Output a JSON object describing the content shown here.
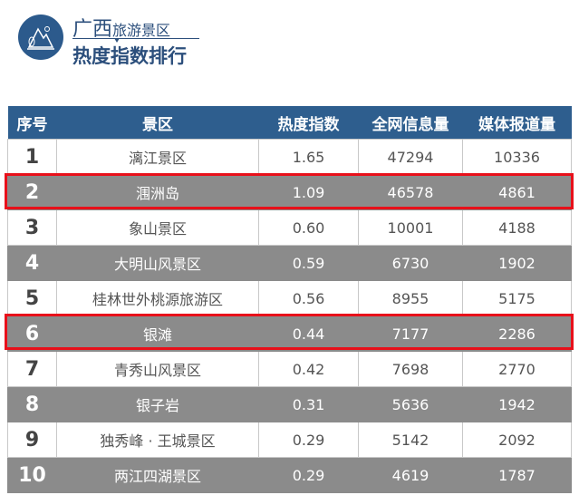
{
  "header": {
    "region": "广西",
    "subtitle": "旅游景区",
    "title": "热度指数排行"
  },
  "table": {
    "columns": [
      "序号",
      "景区",
      "热度指数",
      "全网信息量",
      "媒体报道量"
    ],
    "rows": [
      [
        "1",
        "漓江景区",
        "1.65",
        "47294",
        "10336"
      ],
      [
        "2",
        "涠洲岛",
        "1.09",
        "46578",
        "4861"
      ],
      [
        "3",
        "象山景区",
        "0.60",
        "10001",
        "4188"
      ],
      [
        "4",
        "大明山风景区",
        "0.59",
        "6730",
        "1902"
      ],
      [
        "5",
        "桂林世外桃源旅游区",
        "0.56",
        "8955",
        "5175"
      ],
      [
        "6",
        "银滩",
        "0.44",
        "7177",
        "2286"
      ],
      [
        "7",
        "青秀山风景区",
        "0.42",
        "7698",
        "2770"
      ],
      [
        "8",
        "银子岩",
        "0.31",
        "5636",
        "1942"
      ],
      [
        "9",
        "独秀峰 · 王城景区",
        "0.29",
        "5142",
        "2092"
      ],
      [
        "10",
        "两江四湖景区",
        "0.29",
        "4619",
        "1787"
      ]
    ],
    "highlighted_rows": [
      "2",
      "6"
    ]
  },
  "colors": {
    "header": "#2e5e8e",
    "gray_row": "#8b8b8b",
    "highlight": "#e8101a"
  }
}
